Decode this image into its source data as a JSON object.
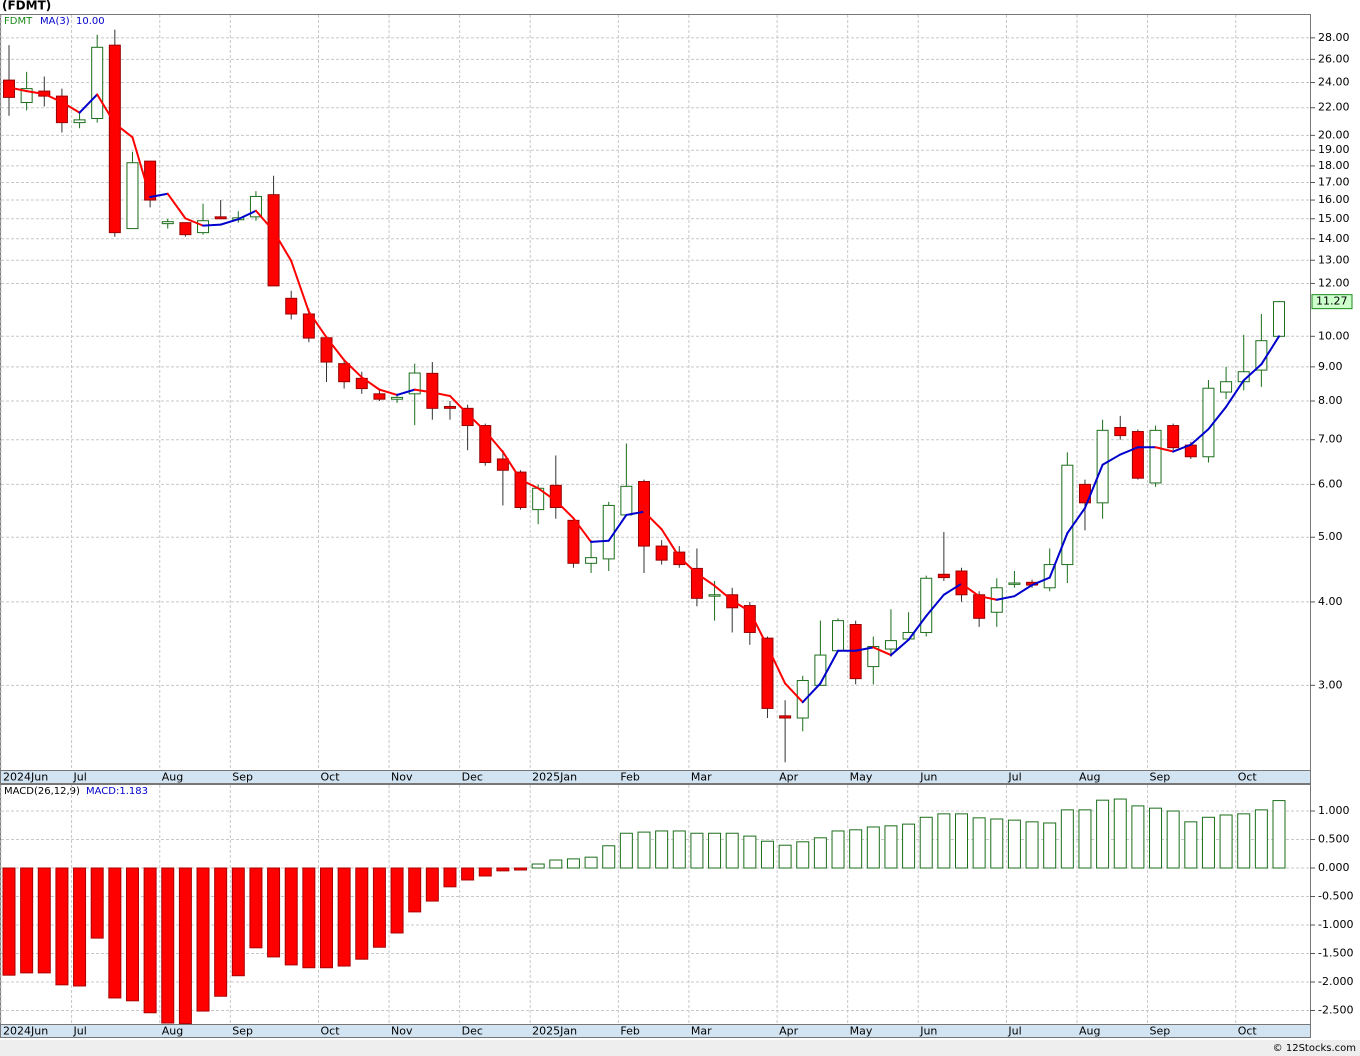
{
  "title": "(FDMT)",
  "footer": "© 12Stocks.com",
  "chart_data": [
    {
      "type": "candlestick",
      "symbol": "FDMT",
      "categories": [
        "2024Jun",
        null,
        null,
        null,
        "Jul",
        null,
        null,
        null,
        null,
        "Aug",
        null,
        null,
        null,
        "Sep",
        null,
        null,
        null,
        null,
        "Oct",
        null,
        null,
        null,
        "Nov",
        null,
        null,
        null,
        "Dec",
        null,
        null,
        null,
        "2025Jan",
        null,
        null,
        null,
        null,
        "Feb",
        null,
        null,
        null,
        "Mar",
        null,
        null,
        null,
        null,
        "Apr",
        null,
        null,
        null,
        "May",
        null,
        null,
        null,
        "Jun",
        null,
        null,
        null,
        null,
        "Jul",
        null,
        null,
        null,
        "Aug",
        null,
        null,
        null,
        "Sep",
        null,
        null,
        null,
        null,
        "Oct",
        null,
        null
      ],
      "open": [
        24.2,
        22.4,
        23.3,
        22.9,
        20.9,
        21.2,
        27.3,
        14.5,
        18.3,
        14.75,
        14.8,
        14.3,
        15.1,
        14.95,
        15.1,
        16.3,
        11.4,
        10.8,
        9.95,
        9.1,
        8.65,
        8.2,
        8.05,
        8.2,
        8.8,
        7.85,
        7.8,
        7.35,
        6.55,
        6.26,
        5.5,
        5.98,
        5.3,
        4.57,
        4.64,
        5.4,
        6.06,
        4.85,
        4.75,
        4.49,
        4.08,
        4.1,
        3.95,
        3.53,
        2.7,
        2.68,
        3.0,
        3.38,
        3.7,
        3.2,
        3.4,
        3.52,
        3.6,
        4.4,
        4.45,
        4.1,
        3.86,
        4.25,
        4.28,
        4.2,
        4.55,
        6.0,
        5.63,
        7.3,
        7.2,
        6.03,
        7.35,
        6.87,
        6.6,
        8.25,
        8.55,
        8.9,
        10.0
      ],
      "high": [
        27.3,
        24.9,
        24.5,
        23.5,
        21.7,
        28.3,
        28.8,
        18.9,
        18.3,
        15.0,
        14.8,
        15.8,
        16.0,
        15.4,
        16.5,
        17.4,
        11.7,
        11.0,
        9.95,
        9.2,
        8.85,
        8.35,
        8.2,
        9.1,
        9.15,
        8.0,
        7.9,
        7.4,
        6.75,
        6.3,
        6.0,
        6.63,
        5.35,
        4.95,
        5.65,
        6.91,
        6.1,
        4.95,
        4.85,
        4.81,
        4.3,
        4.2,
        4.0,
        3.55,
        2.85,
        3.1,
        3.75,
        3.78,
        3.75,
        3.55,
        3.9,
        3.86,
        4.38,
        5.09,
        4.5,
        4.15,
        4.34,
        4.45,
        4.32,
        4.81,
        6.7,
        6.1,
        7.5,
        7.6,
        7.25,
        7.35,
        7.4,
        6.95,
        8.6,
        9.0,
        10.05,
        10.8,
        11.3
      ],
      "low": [
        21.4,
        21.8,
        22.1,
        20.2,
        20.5,
        20.9,
        14.1,
        14.5,
        15.6,
        14.5,
        14.1,
        14.2,
        15.0,
        14.8,
        14.9,
        11.9,
        10.6,
        9.8,
        8.54,
        8.35,
        8.2,
        8.0,
        7.95,
        7.36,
        7.5,
        7.5,
        6.75,
        6.4,
        5.58,
        5.5,
        5.23,
        5.33,
        4.5,
        4.42,
        4.45,
        5.4,
        4.42,
        4.55,
        4.5,
        3.94,
        3.75,
        3.6,
        3.45,
        2.68,
        2.3,
        2.56,
        3.0,
        3.38,
        3.01,
        3.01,
        3.31,
        3.5,
        3.55,
        4.3,
        4.0,
        3.67,
        3.67,
        4.2,
        4.2,
        4.15,
        4.27,
        5.12,
        5.33,
        7.0,
        6.1,
        5.95,
        6.75,
        6.55,
        6.47,
        8.05,
        8.3,
        8.4,
        9.95
      ],
      "close": [
        22.8,
        23.5,
        22.9,
        20.9,
        21.1,
        27.1,
        14.3,
        18.2,
        16.0,
        14.85,
        14.2,
        14.9,
        15.0,
        15.05,
        16.2,
        11.9,
        10.8,
        9.94,
        9.15,
        8.55,
        8.35,
        8.05,
        8.1,
        8.81,
        7.8,
        7.8,
        7.35,
        6.47,
        6.3,
        5.54,
        5.92,
        5.54,
        4.57,
        4.66,
        5.58,
        5.96,
        4.85,
        4.62,
        4.55,
        4.05,
        4.1,
        3.92,
        3.6,
        2.77,
        2.68,
        3.05,
        3.33,
        3.75,
        3.07,
        3.43,
        3.5,
        3.6,
        4.34,
        4.35,
        4.1,
        3.78,
        4.2,
        4.27,
        4.24,
        4.55,
        6.41,
        5.63,
        7.23,
        7.1,
        6.13,
        7.23,
        6.81,
        6.6,
        8.36,
        8.55,
        8.85,
        9.85,
        11.27
      ],
      "up_color": "#1b6e1b",
      "down_color": "#ff0000",
      "symbol_color": "#1b8a1b",
      "ma": {
        "name": "MA(3)",
        "last_value_label": "10.00",
        "rising_color": "#0000cc",
        "falling_color": "#ff0000",
        "values": [
          23.6,
          23.3,
          23.07,
          22.43,
          21.63,
          23.03,
          20.83,
          19.87,
          16.17,
          16.35,
          15.02,
          14.65,
          14.7,
          14.98,
          15.42,
          14.38,
          12.97,
          10.88,
          9.96,
          9.21,
          8.68,
          8.32,
          8.17,
          8.32,
          8.24,
          8.14,
          7.65,
          7.21,
          6.71,
          6.1,
          5.92,
          5.67,
          5.34,
          4.92,
          4.94,
          5.4,
          5.46,
          5.14,
          4.67,
          4.41,
          4.23,
          4.02,
          3.87,
          3.43,
          3.02,
          2.83,
          3.02,
          3.38,
          3.38,
          3.42,
          3.33,
          3.51,
          3.81,
          4.1,
          4.26,
          4.08,
          4.03,
          4.08,
          4.24,
          4.35,
          5.07,
          5.53,
          6.42,
          6.65,
          6.82,
          6.82,
          6.72,
          6.88,
          7.26,
          7.84,
          8.59,
          9.08,
          10.0
        ]
      },
      "last_price_label": "11.27",
      "log_scale": true,
      "grid": true,
      "ylim": [
        2.24,
        30.4
      ],
      "yticks": [
        {
          "value": 3,
          "label": "3.00"
        },
        {
          "value": 4,
          "label": "4.00"
        },
        {
          "value": 5,
          "label": "5.00"
        },
        {
          "value": 6,
          "label": "6.00"
        },
        {
          "value": 7,
          "label": "7.00"
        },
        {
          "value": 8,
          "label": "8.00"
        },
        {
          "value": 9,
          "label": "9.00"
        },
        {
          "value": 10,
          "label": "10.00"
        },
        {
          "value": 12,
          "label": "12.00"
        },
        {
          "value": 13,
          "label": "13.00"
        },
        {
          "value": 14,
          "label": "14.00"
        },
        {
          "value": 15,
          "label": "15.00"
        },
        {
          "value": 16,
          "label": "16.00"
        },
        {
          "value": 17,
          "label": "17.00"
        },
        {
          "value": 18,
          "label": "18.00"
        },
        {
          "value": 19,
          "label": "19.00"
        },
        {
          "value": 20,
          "label": "20.00"
        },
        {
          "value": 22,
          "label": "22.00"
        },
        {
          "value": 24,
          "label": "24.00"
        },
        {
          "value": 26,
          "label": "26.00"
        },
        {
          "value": 28,
          "label": "28.00"
        }
      ]
    },
    {
      "type": "bar",
      "name": "MACD(26,12,9)",
      "value_label": "MACD:1.183",
      "pos_color": "#1b6e1b",
      "neg_color": "#ff0000",
      "grid": true,
      "values": [
        -1.88,
        -1.84,
        -1.84,
        -2.05,
        -2.07,
        -1.23,
        -2.28,
        -2.33,
        -2.54,
        -2.72,
        -2.73,
        -2.51,
        -2.25,
        -1.89,
        -1.4,
        -1.56,
        -1.7,
        -1.75,
        -1.75,
        -1.72,
        -1.6,
        -1.39,
        -1.14,
        -0.77,
        -0.58,
        -0.33,
        -0.21,
        -0.14,
        -0.05,
        -0.035,
        0.07,
        0.14,
        0.16,
        0.19,
        0.39,
        0.61,
        0.63,
        0.65,
        0.65,
        0.61,
        0.61,
        0.61,
        0.56,
        0.47,
        0.4,
        0.46,
        0.53,
        0.65,
        0.67,
        0.72,
        0.74,
        0.77,
        0.89,
        0.95,
        0.95,
        0.88,
        0.86,
        0.84,
        0.81,
        0.79,
        1.02,
        1.02,
        1.19,
        1.21,
        1.09,
        1.05,
        1.0,
        0.81,
        0.89,
        0.93,
        0.95,
        1.02,
        1.183
      ],
      "ylim": [
        -2.737,
        1.474
      ],
      "yticks": [
        {
          "value": 1,
          "label": "1.000"
        },
        {
          "value": 0.5,
          "label": "0.500"
        },
        {
          "value": 0,
          "label": "0.000"
        },
        {
          "value": -0.5,
          "label": "-0.500"
        },
        {
          "value": -1,
          "label": "-1.000"
        },
        {
          "value": -1.5,
          "label": "-1.500"
        },
        {
          "value": -2,
          "label": "-2.000"
        },
        {
          "value": -2.5,
          "label": "-2.500"
        }
      ]
    }
  ]
}
